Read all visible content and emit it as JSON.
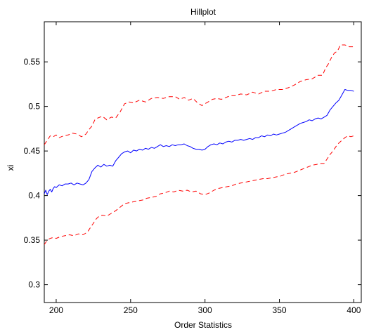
{
  "chart_data": {
    "type": "line",
    "title": "Hillplot",
    "xlabel": "Order Statistics",
    "ylabel": "xi",
    "xlim": [
      192,
      405
    ],
    "ylim": [
      0.28,
      0.595
    ],
    "xticks": [
      200,
      250,
      300,
      350,
      400
    ],
    "yticks": [
      0.3,
      0.35,
      0.4,
      0.45,
      0.5,
      0.55
    ],
    "xtick_labels": [
      "200",
      "250",
      "300",
      "350",
      "400"
    ],
    "ytick_labels": [
      "0.3",
      "0.35",
      "0.4",
      "0.45",
      "0.5",
      "0.55"
    ],
    "grid": false,
    "legend": "none",
    "series": [
      {
        "color": "#ff0000",
        "style": "dashed",
        "points": [
          [
            192,
            0.457
          ],
          [
            194,
            0.462
          ],
          [
            196,
            0.467
          ],
          [
            198,
            0.466
          ],
          [
            200,
            0.468
          ],
          [
            202,
            0.465
          ],
          [
            205,
            0.467
          ],
          [
            208,
            0.468
          ],
          [
            211,
            0.47
          ],
          [
            214,
            0.469
          ],
          [
            217,
            0.466
          ],
          [
            220,
            0.469
          ],
          [
            222,
            0.474
          ],
          [
            224,
            0.478
          ],
          [
            226,
            0.485
          ],
          [
            228,
            0.487
          ],
          [
            231,
            0.489
          ],
          [
            234,
            0.485
          ],
          [
            237,
            0.488
          ],
          [
            240,
            0.487
          ],
          [
            243,
            0.494
          ],
          [
            246,
            0.503
          ],
          [
            249,
            0.505
          ],
          [
            252,
            0.504
          ],
          [
            256,
            0.507
          ],
          [
            260,
            0.505
          ],
          [
            264,
            0.509
          ],
          [
            268,
            0.51
          ],
          [
            272,
            0.509
          ],
          [
            276,
            0.511
          ],
          [
            280,
            0.511
          ],
          [
            283,
            0.508
          ],
          [
            286,
            0.51
          ],
          [
            289,
            0.507
          ],
          [
            292,
            0.509
          ],
          [
            295,
            0.504
          ],
          [
            298,
            0.501
          ],
          [
            300,
            0.503
          ],
          [
            302,
            0.505
          ],
          [
            305,
            0.508
          ],
          [
            308,
            0.509
          ],
          [
            311,
            0.508
          ],
          [
            314,
            0.51
          ],
          [
            317,
            0.512
          ],
          [
            320,
            0.512
          ],
          [
            324,
            0.514
          ],
          [
            328,
            0.513
          ],
          [
            332,
            0.516
          ],
          [
            336,
            0.514
          ],
          [
            340,
            0.517
          ],
          [
            344,
            0.517
          ],
          [
            348,
            0.519
          ],
          [
            352,
            0.519
          ],
          [
            356,
            0.521
          ],
          [
            360,
            0.524
          ],
          [
            364,
            0.528
          ],
          [
            368,
            0.53
          ],
          [
            372,
            0.531
          ],
          [
            376,
            0.535
          ],
          [
            379,
            0.535
          ],
          [
            381,
            0.543
          ],
          [
            383,
            0.548
          ],
          [
            385,
            0.555
          ],
          [
            387,
            0.56
          ],
          [
            389,
            0.562
          ],
          [
            391,
            0.569
          ],
          [
            394,
            0.569
          ],
          [
            397,
            0.567
          ],
          [
            400,
            0.567
          ]
        ]
      },
      {
        "color": "#0000ff",
        "style": "solid",
        "points": [
          [
            192,
            0.402
          ],
          [
            193,
            0.406
          ],
          [
            194,
            0.401
          ],
          [
            195,
            0.405
          ],
          [
            196,
            0.407
          ],
          [
            197,
            0.404
          ],
          [
            198,
            0.408
          ],
          [
            199,
            0.41
          ],
          [
            200,
            0.409
          ],
          [
            202,
            0.412
          ],
          [
            204,
            0.411
          ],
          [
            206,
            0.413
          ],
          [
            208,
            0.413
          ],
          [
            210,
            0.414
          ],
          [
            212,
            0.412
          ],
          [
            214,
            0.414
          ],
          [
            216,
            0.413
          ],
          [
            218,
            0.412
          ],
          [
            220,
            0.414
          ],
          [
            222,
            0.418
          ],
          [
            224,
            0.427
          ],
          [
            226,
            0.431
          ],
          [
            228,
            0.434
          ],
          [
            230,
            0.432
          ],
          [
            232,
            0.435
          ],
          [
            234,
            0.433
          ],
          [
            236,
            0.434
          ],
          [
            238,
            0.433
          ],
          [
            240,
            0.439
          ],
          [
            242,
            0.443
          ],
          [
            244,
            0.447
          ],
          [
            246,
            0.449
          ],
          [
            248,
            0.45
          ],
          [
            250,
            0.448
          ],
          [
            252,
            0.451
          ],
          [
            254,
            0.45
          ],
          [
            256,
            0.452
          ],
          [
            258,
            0.451
          ],
          [
            260,
            0.453
          ],
          [
            262,
            0.452
          ],
          [
            264,
            0.454
          ],
          [
            266,
            0.453
          ],
          [
            268,
            0.455
          ],
          [
            270,
            0.457
          ],
          [
            272,
            0.455
          ],
          [
            274,
            0.456
          ],
          [
            276,
            0.455
          ],
          [
            278,
            0.457
          ],
          [
            280,
            0.456
          ],
          [
            282,
            0.457
          ],
          [
            284,
            0.457
          ],
          [
            286,
            0.458
          ],
          [
            288,
            0.456
          ],
          [
            290,
            0.455
          ],
          [
            292,
            0.453
          ],
          [
            294,
            0.452
          ],
          [
            296,
            0.452
          ],
          [
            298,
            0.451
          ],
          [
            300,
            0.452
          ],
          [
            302,
            0.455
          ],
          [
            304,
            0.457
          ],
          [
            306,
            0.458
          ],
          [
            308,
            0.457
          ],
          [
            310,
            0.459
          ],
          [
            312,
            0.458
          ],
          [
            314,
            0.46
          ],
          [
            316,
            0.461
          ],
          [
            318,
            0.46
          ],
          [
            320,
            0.462
          ],
          [
            322,
            0.462
          ],
          [
            324,
            0.463
          ],
          [
            326,
            0.462
          ],
          [
            328,
            0.463
          ],
          [
            330,
            0.464
          ],
          [
            332,
            0.463
          ],
          [
            334,
            0.465
          ],
          [
            336,
            0.465
          ],
          [
            338,
            0.467
          ],
          [
            340,
            0.466
          ],
          [
            342,
            0.468
          ],
          [
            344,
            0.467
          ],
          [
            346,
            0.469
          ],
          [
            348,
            0.468
          ],
          [
            350,
            0.469
          ],
          [
            352,
            0.47
          ],
          [
            354,
            0.471
          ],
          [
            356,
            0.473
          ],
          [
            358,
            0.475
          ],
          [
            360,
            0.477
          ],
          [
            362,
            0.479
          ],
          [
            364,
            0.481
          ],
          [
            366,
            0.482
          ],
          [
            368,
            0.483
          ],
          [
            370,
            0.485
          ],
          [
            372,
            0.484
          ],
          [
            374,
            0.486
          ],
          [
            376,
            0.487
          ],
          [
            378,
            0.486
          ],
          [
            380,
            0.488
          ],
          [
            382,
            0.49
          ],
          [
            384,
            0.496
          ],
          [
            386,
            0.5
          ],
          [
            388,
            0.504
          ],
          [
            390,
            0.507
          ],
          [
            392,
            0.513
          ],
          [
            394,
            0.519
          ],
          [
            396,
            0.518
          ],
          [
            398,
            0.518
          ],
          [
            400,
            0.517
          ]
        ]
      },
      {
        "color": "#ff0000",
        "style": "dashed",
        "points": [
          [
            192,
            0.345
          ],
          [
            194,
            0.35
          ],
          [
            196,
            0.352
          ],
          [
            198,
            0.353
          ],
          [
            200,
            0.352
          ],
          [
            203,
            0.354
          ],
          [
            206,
            0.355
          ],
          [
            209,
            0.356
          ],
          [
            212,
            0.355
          ],
          [
            215,
            0.357
          ],
          [
            218,
            0.356
          ],
          [
            221,
            0.359
          ],
          [
            223,
            0.364
          ],
          [
            225,
            0.369
          ],
          [
            227,
            0.374
          ],
          [
            229,
            0.377
          ],
          [
            231,
            0.378
          ],
          [
            234,
            0.377
          ],
          [
            237,
            0.38
          ],
          [
            240,
            0.383
          ],
          [
            243,
            0.387
          ],
          [
            246,
            0.391
          ],
          [
            249,
            0.392
          ],
          [
            252,
            0.393
          ],
          [
            255,
            0.394
          ],
          [
            258,
            0.395
          ],
          [
            261,
            0.397
          ],
          [
            264,
            0.398
          ],
          [
            267,
            0.399
          ],
          [
            270,
            0.402
          ],
          [
            273,
            0.403
          ],
          [
            276,
            0.405
          ],
          [
            279,
            0.404
          ],
          [
            282,
            0.406
          ],
          [
            285,
            0.405
          ],
          [
            288,
            0.406
          ],
          [
            291,
            0.404
          ],
          [
            294,
            0.405
          ],
          [
            297,
            0.402
          ],
          [
            300,
            0.401
          ],
          [
            303,
            0.403
          ],
          [
            306,
            0.406
          ],
          [
            309,
            0.408
          ],
          [
            312,
            0.409
          ],
          [
            315,
            0.41
          ],
          [
            318,
            0.411
          ],
          [
            321,
            0.413
          ],
          [
            324,
            0.414
          ],
          [
            327,
            0.415
          ],
          [
            330,
            0.416
          ],
          [
            333,
            0.417
          ],
          [
            336,
            0.418
          ],
          [
            339,
            0.419
          ],
          [
            342,
            0.419
          ],
          [
            345,
            0.42
          ],
          [
            348,
            0.421
          ],
          [
            351,
            0.422
          ],
          [
            354,
            0.424
          ],
          [
            357,
            0.425
          ],
          [
            360,
            0.426
          ],
          [
            363,
            0.428
          ],
          [
            366,
            0.43
          ],
          [
            369,
            0.432
          ],
          [
            372,
            0.434
          ],
          [
            375,
            0.435
          ],
          [
            378,
            0.436
          ],
          [
            380,
            0.436
          ],
          [
            382,
            0.441
          ],
          [
            384,
            0.446
          ],
          [
            386,
            0.45
          ],
          [
            388,
            0.455
          ],
          [
            390,
            0.459
          ],
          [
            392,
            0.462
          ],
          [
            394,
            0.465
          ],
          [
            396,
            0.467
          ],
          [
            398,
            0.466
          ],
          [
            400,
            0.467
          ]
        ]
      }
    ]
  }
}
